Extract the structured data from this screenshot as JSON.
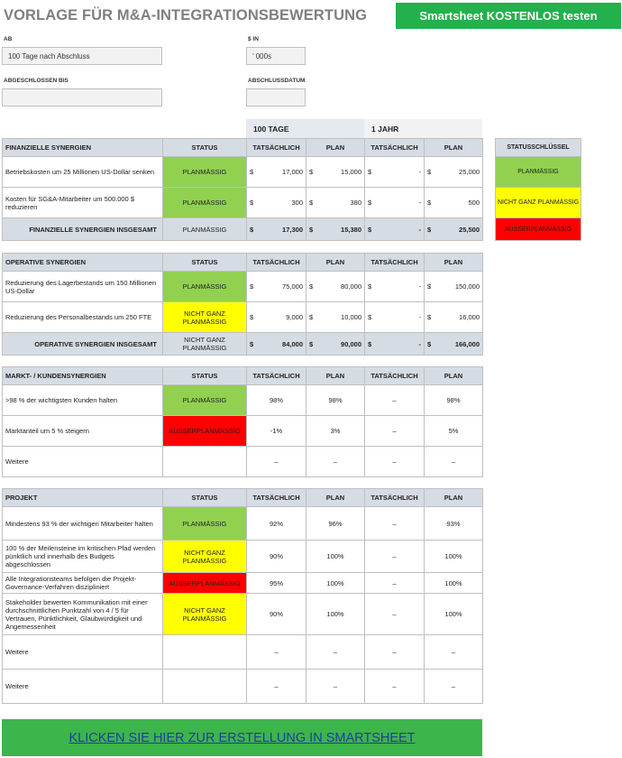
{
  "header": {
    "title": "VORLAGE FÜR M&A-INTEGRATIONSBEWERTUNG",
    "cta_label": "Smartsheet KOSTENLOS testen"
  },
  "form": {
    "ab_label": "AB",
    "ab_value": "100 Tage nach Abschluss",
    "currency_label": "$ IN",
    "currency_value": "’ 000s",
    "completed_label": "ABGESCHLOSSEN BIS",
    "completed_value": "",
    "closing_label": "ABSCHLUSSDATUM",
    "closing_value": ""
  },
  "periods": [
    "100 TAGE",
    "1 JAHR"
  ],
  "columns": {
    "status": "STATUS",
    "actual": "TATSÄCHLICH",
    "plan": "PLAN"
  },
  "status_key": {
    "title": "STATUSSCHLÜSSEL",
    "items": [
      {
        "label": "PLANMÄSSIG",
        "color": "#92d050"
      },
      {
        "label": "NICHT GANZ PLANMÄSSIG",
        "color": "#ffff00"
      },
      {
        "label": "AUSSERPLANMÄSSIG",
        "color": "#ff0000"
      }
    ]
  },
  "financial": {
    "title": "FINANZIELLE SYNERGIEN",
    "rows": [
      {
        "desc": "Betriebskosten um 25 Millionen US-Dollar senken",
        "status": "PLANMÄSSIG",
        "d_act": "17,000",
        "d_plan": "15,000",
        "y_act": "-",
        "y_plan": "25,000"
      },
      {
        "desc": "Kosten für SG&A-Mitarbeiter um 500.000 $ reduzieren",
        "status": "PLANMÄSSIG",
        "d_act": "300",
        "d_plan": "380",
        "y_act": "-",
        "y_plan": "500"
      }
    ],
    "total": {
      "label": "FINANZIELLE SYNERGIEN INSGESAMT",
      "status": "PLANMÄSSIG",
      "d_act": "17,300",
      "d_plan": "15,380",
      "y_act": "-",
      "y_plan": "25,500"
    }
  },
  "operative": {
    "title": "OPERATIVE SYNERGIEN",
    "rows": [
      {
        "desc": "Reduzierung des Lagerbestands um 150 Millionen US-Dollar",
        "status": "PLANMÄSSIG",
        "d_act": "75,000",
        "d_plan": "80,000",
        "y_act": "-",
        "y_plan": "150,000"
      },
      {
        "desc": "Reduzierung des Personalbestands um 250 FTE",
        "status": "NICHT GANZ PLANMÄSSIG",
        "d_act": "9,000",
        "d_plan": "10,000",
        "y_act": "-",
        "y_plan": "16,000"
      }
    ],
    "total": {
      "label": "OPERATIVE SYNERGIEN INSGESAMT",
      "status": "NICHT GANZ PLANMÄSSIG",
      "d_act": "84,000",
      "d_plan": "90,000",
      "y_act": "-",
      "y_plan": "166,000"
    }
  },
  "market": {
    "title": "MARKT- / KUNDENSYNERGIEN",
    "rows": [
      {
        "desc": ">98 % der wichtigsten Kunden halten",
        "status": "PLANMÄSSIG",
        "d_act": "98%",
        "d_plan": "98%",
        "y_act": "–",
        "y_plan": "98%"
      },
      {
        "desc": "Marktanteil um 5 % steigern",
        "status": "AUSSERPLANMÄSSIG",
        "d_act": "-1%",
        "d_plan": "3%",
        "y_act": "–",
        "y_plan": "5%"
      },
      {
        "desc": "Weitere",
        "status": "",
        "d_act": "–",
        "d_plan": "–",
        "y_act": "–",
        "y_plan": "–"
      }
    ]
  },
  "project": {
    "title": "PROJEKT",
    "rows": [
      {
        "desc": "Mindestens 93 % der wichtigen Mitarbeiter halten",
        "status": "PLANMÄSSIG",
        "d_act": "92%",
        "d_plan": "96%",
        "y_act": "–",
        "y_plan": "93%"
      },
      {
        "desc": "100 % der Meilensteine im kritischen Pfad werden pünktlich und innerhalb des Budgets abgeschlossen",
        "status": "NICHT GANZ PLANMÄSSIG",
        "d_act": "90%",
        "d_plan": "100%",
        "y_act": "–",
        "y_plan": "100%"
      },
      {
        "desc": "Alle Integrationsteams befolgen die Projekt-Governance-Verfahren diszipliniert",
        "status": "AUSSERPLANMÄSSIG",
        "d_act": "95%",
        "d_plan": "100%",
        "y_act": "–",
        "y_plan": "100%"
      },
      {
        "desc": "Stakeholder bewerten Kommunikation mit einer durchschnittlichen Punktzahl von 4 / 5 für Vertrauen, Pünktlichkeit, Glaubwürdigkeit und Angemessenheit",
        "status": "NICHT GANZ PLANMÄSSIG",
        "d_act": "90%",
        "d_plan": "100%",
        "y_act": "–",
        "y_plan": "100%"
      },
      {
        "desc": "Weitere",
        "status": "",
        "d_act": "–",
        "d_plan": "–",
        "y_act": "–",
        "y_plan": "–"
      },
      {
        "desc": "Weitere",
        "status": "",
        "d_act": "–",
        "d_plan": "–",
        "y_act": "–",
        "y_plan": "–"
      }
    ]
  },
  "currency_symbol": "$",
  "status_colors": {
    "PLANMÄSSIG": "#92d050",
    "NICHT GANZ PLANMÄSSIG": "#ffff00",
    "AUSSERPLANMÄSSIG": "#ff0000"
  },
  "footer": {
    "cta_label": "KLICKEN SIE HIER ZUR ERSTELLUNG IN SMARTSHEET"
  }
}
